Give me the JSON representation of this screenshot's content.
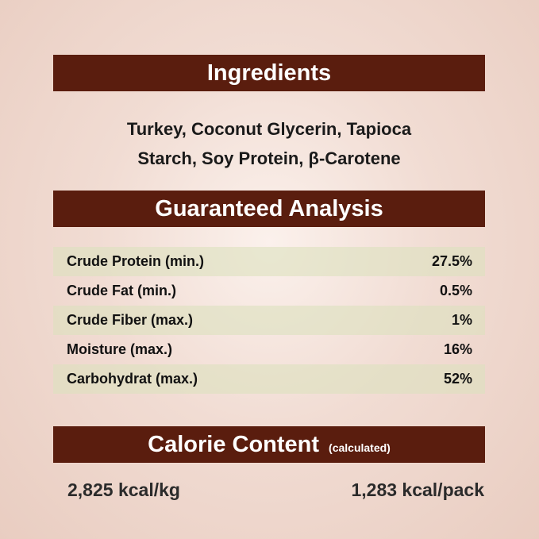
{
  "ingredients": {
    "title": "Ingredients",
    "line1": "Turkey, Coconut Glycerin, Tapioca",
    "line2": "Starch, Soy Protein, β-Carotene"
  },
  "analysis": {
    "title": "Guaranteed Analysis",
    "rows": [
      {
        "label": "Crude Protein (min.)",
        "value": "27.5%"
      },
      {
        "label": "Crude Fat (min.)",
        "value": "0.5%"
      },
      {
        "label": "Crude Fiber (max.)",
        "value": "1%"
      },
      {
        "label": "Moisture (max.)",
        "value": "16%"
      },
      {
        "label": "Carbohydrat (max.)",
        "value": "52%"
      }
    ]
  },
  "calorie": {
    "title": "Calorie Content",
    "subtitle": "(calculated)",
    "per_kg": "2,825 kcal/kg",
    "per_pack": "1,283 kcal/pack"
  },
  "colors": {
    "banner": "#5a1d0e",
    "row_shade": "#e6e2c8"
  }
}
